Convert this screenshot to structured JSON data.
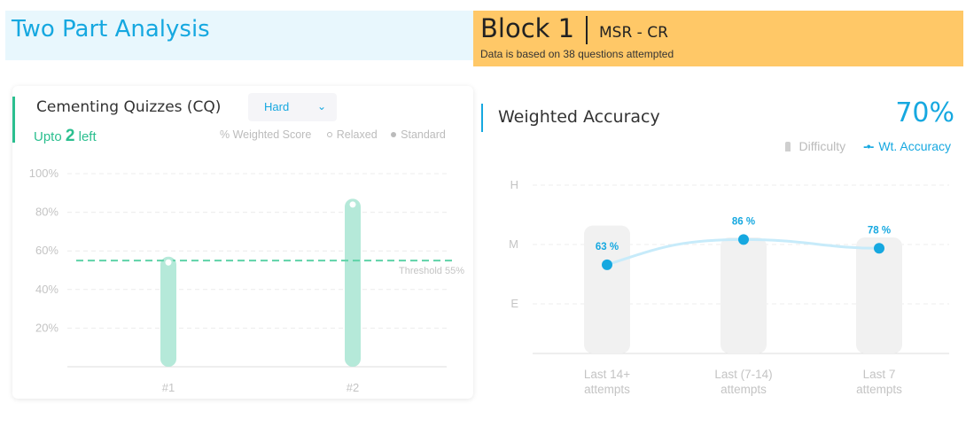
{
  "header": {
    "title": "Two Part Analysis",
    "block_label": "Block 1",
    "block_subtitle": "MSR - CR",
    "note": "Data is based on 38 questions attempted"
  },
  "left_card": {
    "title": "Cementing Quizzes (CQ)",
    "dropdown_value": "Hard",
    "upto_prefix": "Upto ",
    "upto_count": "2",
    "upto_suffix": " left",
    "legend_label": "% Weighted Score",
    "legend_relaxed": "Relaxed",
    "legend_standard": "Standard",
    "colors": {
      "accent": "#2bbf8f",
      "bar": "#b5e9d9",
      "threshold": "#5fd3a8"
    }
  },
  "right_card": {
    "title": "Weighted Accuracy",
    "value": "70%",
    "legend_difficulty": "Difficulty",
    "legend_icon": "-•-",
    "legend_accuracy": "Wt. Accuracy",
    "colors": {
      "accent": "#16a8e0",
      "bar": "#f1f1f1",
      "line": "#c7ebfa"
    }
  },
  "chart_data": [
    {
      "type": "bar",
      "categories": [
        "#1",
        "#2"
      ],
      "values": [
        57,
        87
      ],
      "marker_values": [
        54,
        84
      ],
      "yticks": [
        "100%",
        "80%",
        "60%",
        "40%",
        "20%"
      ],
      "ylim": [
        0,
        100
      ],
      "threshold": {
        "value": 55,
        "label": "Threshold 55%"
      },
      "grid": true
    },
    {
      "type": "line",
      "categories": [
        [
          "Last 14+",
          "attempts"
        ],
        [
          "Last (7-14)",
          "attempts"
        ],
        [
          "Last 7",
          "attempts"
        ]
      ],
      "yticks": [
        "H",
        "M",
        "E"
      ],
      "difficulty_level": [
        1.2,
        1.0,
        1.0
      ],
      "values": [
        63,
        86,
        78
      ],
      "value_labels": [
        "63 %",
        "86 %",
        "78 %"
      ],
      "ylim": [
        0,
        100
      ],
      "grid": true
    }
  ]
}
